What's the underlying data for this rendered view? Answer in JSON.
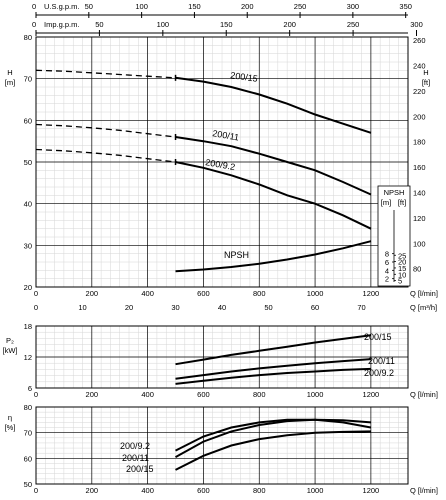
{
  "chart_data": [
    {
      "panel": "head",
      "type": "line",
      "top_axes": [
        {
          "label": "U.S.g.p.m.",
          "ticks": [
            "0",
            "50",
            "100",
            "150",
            "200",
            "250",
            "300",
            "350"
          ],
          "max": 352.2
        },
        {
          "label": "Imp.g.p.m.",
          "ticks": [
            "0",
            "50",
            "100",
            "150",
            "200",
            "250",
            "300"
          ],
          "max": 293.3
        }
      ],
      "xlabel": "Q [l/min]",
      "xlim": [
        0,
        1333
      ],
      "xticks": [
        "0",
        "200",
        "400",
        "600",
        "800",
        "1000",
        "1200"
      ],
      "x2label": "Q [m³/h]",
      "x2lim": [
        0,
        80
      ],
      "x2ticks": [
        "0",
        "10",
        "20",
        "30",
        "40",
        "50",
        "60",
        "70"
      ],
      "ylabel": "H [m]",
      "ylim": [
        20,
        80
      ],
      "yticks": [
        "20",
        "30",
        "40",
        "50",
        "60",
        "70",
        "80"
      ],
      "y2label": "H [ft]",
      "y2lim": [
        65.6,
        262.5
      ],
      "y2ticks": [
        "80",
        "100",
        "120",
        "140",
        "160",
        "180",
        "200",
        "220",
        "240",
        "260"
      ],
      "series": [
        {
          "name": "200/15",
          "x": [
            500,
            600,
            700,
            800,
            900,
            1000,
            1100,
            1200
          ],
          "y": [
            70.2,
            69.3,
            68.0,
            66.2,
            64.0,
            61.4,
            59.2,
            57.0
          ],
          "dashed_x": [
            0,
            100,
            200,
            300,
            400,
            500
          ],
          "dashed_y": [
            72.0,
            71.8,
            71.4,
            71.0,
            70.6,
            70.2
          ]
        },
        {
          "name": "200/11",
          "x": [
            500,
            600,
            700,
            800,
            900,
            1000,
            1100,
            1200
          ],
          "y": [
            56.0,
            55.0,
            53.8,
            52.0,
            50.0,
            48.0,
            45.2,
            42.2
          ],
          "dashed_x": [
            0,
            100,
            200,
            300,
            400,
            500
          ],
          "dashed_y": [
            59.0,
            58.7,
            58.2,
            57.6,
            56.8,
            56.0
          ]
        },
        {
          "name": "200/9.2",
          "x": [
            500,
            600,
            700,
            800,
            900,
            1000,
            1100,
            1200
          ],
          "y": [
            50.0,
            48.6,
            46.8,
            44.6,
            42.0,
            40.0,
            37.2,
            34.0
          ],
          "dashed_x": [
            0,
            100,
            200,
            300,
            400,
            500
          ],
          "dashed_y": [
            53.0,
            52.7,
            52.2,
            51.6,
            50.8,
            50.0
          ]
        },
        {
          "name": "NPSH",
          "x": [
            500,
            600,
            700,
            800,
            900,
            1000,
            1100,
            1200
          ],
          "y": [
            23.8,
            24.2,
            24.8,
            25.6,
            26.6,
            27.8,
            29.3,
            31.0
          ]
        }
      ],
      "npsh_axis": {
        "label": "NPSH",
        "units": [
          "[m]",
          "[ft]"
        ],
        "m_ticks": [
          "2",
          "4",
          "6",
          "8"
        ],
        "ft_ticks": [
          "5",
          "10",
          "15",
          "20",
          "25"
        ]
      }
    },
    {
      "panel": "power",
      "type": "line",
      "xlabel": "Q [l/min]",
      "xlim": [
        0,
        1333
      ],
      "xticks": [
        "0",
        "200",
        "400",
        "600",
        "800",
        "1000",
        "1200"
      ],
      "ylabel": "P₂ [kW]",
      "ylim": [
        6,
        18
      ],
      "yticks": [
        "6",
        "12",
        "18"
      ],
      "series": [
        {
          "name": "200/15",
          "x": [
            500,
            600,
            700,
            800,
            900,
            1000,
            1100,
            1200
          ],
          "y": [
            10.6,
            11.5,
            12.4,
            13.2,
            14.0,
            14.8,
            15.5,
            16.2
          ]
        },
        {
          "name": "200/11",
          "x": [
            500,
            600,
            700,
            800,
            900,
            1000,
            1100,
            1200
          ],
          "y": [
            7.8,
            8.5,
            9.2,
            9.8,
            10.3,
            10.8,
            11.2,
            11.6
          ]
        },
        {
          "name": "200/9.2",
          "x": [
            500,
            600,
            700,
            800,
            900,
            1000,
            1100,
            1200
          ],
          "y": [
            6.8,
            7.4,
            8.0,
            8.5,
            8.9,
            9.2,
            9.5,
            9.7
          ]
        }
      ]
    },
    {
      "panel": "efficiency",
      "type": "line",
      "xlabel": "Q [l/min]",
      "xlim": [
        0,
        1333
      ],
      "xticks": [
        "0",
        "200",
        "400",
        "600",
        "800",
        "1000",
        "1200"
      ],
      "ylabel": "η [%]",
      "ylim": [
        50,
        80
      ],
      "yticks": [
        "50",
        "60",
        "70",
        "80"
      ],
      "series": [
        {
          "name": "200/9.2",
          "x": [
            500,
            600,
            700,
            800,
            900,
            1000,
            1100,
            1200
          ],
          "y": [
            63.0,
            68.5,
            72.0,
            74.0,
            75.0,
            75.0,
            74.0,
            72.0
          ]
        },
        {
          "name": "200/11",
          "x": [
            500,
            600,
            700,
            800,
            900,
            1000,
            1100,
            1200
          ],
          "y": [
            60.5,
            66.5,
            70.5,
            73.0,
            74.5,
            75.0,
            74.8,
            74.0
          ]
        },
        {
          "name": "200/15",
          "x": [
            500,
            600,
            700,
            800,
            900,
            1000,
            1100,
            1200
          ],
          "y": [
            55.5,
            61.0,
            65.0,
            67.5,
            69.0,
            70.0,
            70.3,
            70.5
          ]
        }
      ]
    }
  ]
}
